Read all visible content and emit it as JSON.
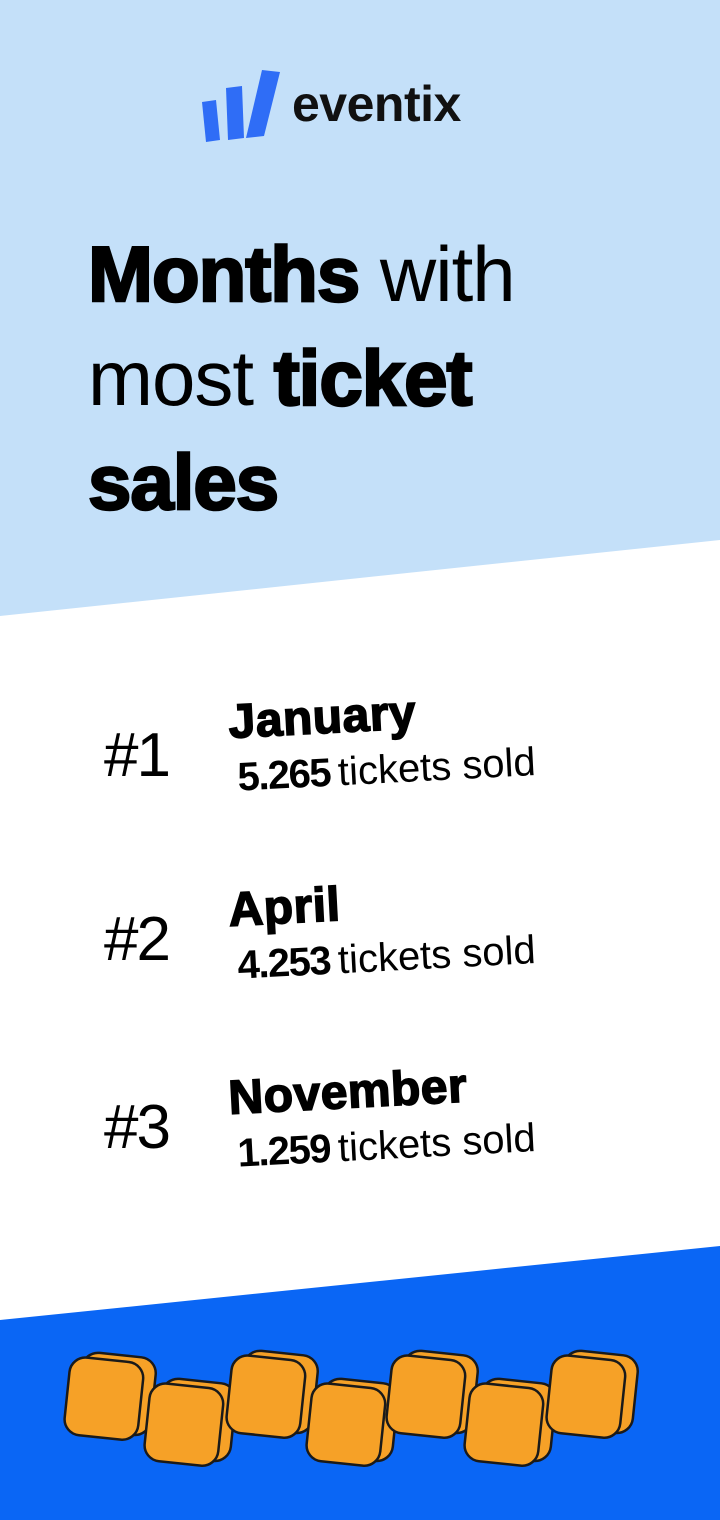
{
  "brand": {
    "name": "eventix",
    "colors": {
      "light_blue": "#c4e0f9",
      "blue": "#0a66f5",
      "orange": "#f6a127",
      "logo_blue": "#2f6df6"
    }
  },
  "headline": {
    "part1": "Months",
    "part2": " with",
    "part3": "most ",
    "part4": "ticket",
    "part5": "sales"
  },
  "ranking": [
    {
      "rank": "#1",
      "month": "January",
      "count": "5.265",
      "label": "tickets sold"
    },
    {
      "rank": "#2",
      "month": "April",
      "count": "4.253",
      "label": "tickets sold"
    },
    {
      "rank": "#3",
      "month": "November",
      "count": "1.259",
      "label": "tickets sold"
    }
  ],
  "decoration": {
    "icon": "orange-ticket-stubs"
  }
}
